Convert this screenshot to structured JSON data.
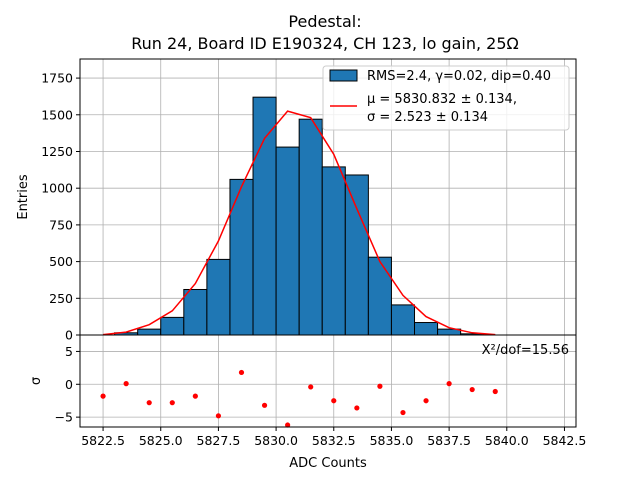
{
  "chart_data": [
    {
      "type": "bar",
      "title_line1": "Pedestal:",
      "title_line2": "Run 24, Board ID E190324, CH 123, lo gain, 25Ω",
      "ylabel": "Entries",
      "xlim": [
        5821.5,
        5843.0
      ],
      "ylim": [
        0,
        1880
      ],
      "yticks": [
        0,
        250,
        500,
        750,
        1000,
        1250,
        1500,
        1750
      ],
      "grid": true,
      "legend_placement": "top-right",
      "bin_edges": [
        5823.0,
        5824.0,
        5825.0,
        5826.0,
        5827.0,
        5828.0,
        5829.0,
        5830.0,
        5831.0,
        5832.0,
        5833.0,
        5834.0,
        5835.0,
        5836.0,
        5837.0,
        5838.0,
        5839.0
      ],
      "values": [
        15,
        40,
        120,
        310,
        515,
        1060,
        1620,
        1280,
        1470,
        1145,
        1090,
        530,
        205,
        85,
        40,
        8
      ],
      "bar_color": "#1f77b4",
      "series": [
        {
          "name": "RMS=2.4, γ=0.02, dip=0.40",
          "kind": "histogram",
          "color": "#1f77b4"
        },
        {
          "name": "μ = 5830.832 ± 0.134,",
          "name_line2": "σ = 2.523 ± 0.134",
          "kind": "fit-line",
          "color": "#ff0000"
        }
      ],
      "fit_x": [
        5822.5,
        5823.5,
        5824.5,
        5825.5,
        5826.5,
        5827.5,
        5828.5,
        5829.5,
        5830.5,
        5831.5,
        5832.5,
        5833.5,
        5834.5,
        5835.5,
        5836.5,
        5837.5,
        5838.5,
        5839.5
      ],
      "fit_y": [
        3,
        20,
        70,
        165,
        350,
        640,
        1010,
        1340,
        1525,
        1480,
        1230,
        860,
        500,
        270,
        125,
        50,
        15,
        3
      ]
    },
    {
      "type": "scatter",
      "xlabel": "ADC Counts",
      "ylabel": "σ",
      "xlim": [
        5821.5,
        5843.0
      ],
      "ylim": [
        -6.5,
        7.5
      ],
      "yticks": [
        -5,
        0,
        5
      ],
      "xticks": [
        5822.5,
        5825.0,
        5827.5,
        5830.0,
        5832.5,
        5835.0,
        5837.5,
        5840.0,
        5842.5
      ],
      "xtick_labels": [
        "5822.5",
        "5825.0",
        "5827.5",
        "5830.0",
        "5832.5",
        "5835.0",
        "5837.5",
        "5840.0",
        "5842.5"
      ],
      "grid": true,
      "annotation": "X²/dof=15.56",
      "point_color": "#ff0000",
      "x": [
        5822.5,
        5823.5,
        5824.5,
        5825.5,
        5826.5,
        5827.5,
        5828.5,
        5829.5,
        5830.5,
        5831.5,
        5832.5,
        5833.5,
        5834.5,
        5835.5,
        5836.5,
        5837.5,
        5838.5,
        5839.5
      ],
      "y": [
        -1.8,
        0.1,
        -2.8,
        -2.8,
        -1.8,
        -4.8,
        1.8,
        -3.2,
        -6.2,
        -0.4,
        -2.5,
        -3.6,
        -0.3,
        -4.3,
        -2.5,
        0.1,
        -0.8,
        -1.1
      ]
    }
  ]
}
